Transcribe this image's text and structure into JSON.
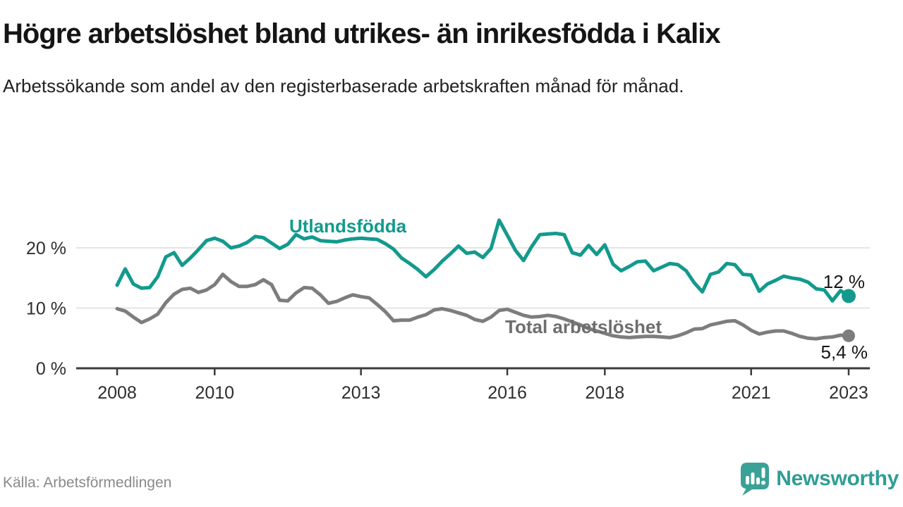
{
  "header": {
    "title": "Högre arbetslöshet bland utrikes- än inrikesfödda i Kalix",
    "subtitle": "Arbetssökande som andel av den registerbaserade arbetskraften månad för månad."
  },
  "chart_data": {
    "type": "line",
    "x_unit": "year (monthly data, plotted every 2nd month)",
    "x_start": 2008.0,
    "x_step_years": 0.1666667,
    "x_end": 2023.0,
    "ylim": [
      0,
      26
    ],
    "grid": "horizontal",
    "legend_position": "inline-labels",
    "yticks": [
      {
        "value": 0,
        "label": "0 %"
      },
      {
        "value": 10,
        "label": "10 %"
      },
      {
        "value": 20,
        "label": "20 %"
      }
    ],
    "xticks": [
      {
        "value": 2008,
        "label": "2008"
      },
      {
        "value": 2010,
        "label": "2010"
      },
      {
        "value": 2013,
        "label": "2013"
      },
      {
        "value": 2016,
        "label": "2016"
      },
      {
        "value": 2018,
        "label": "2018"
      },
      {
        "value": 2021,
        "label": "2021"
      },
      {
        "value": 2023,
        "label": "2023"
      }
    ],
    "series": [
      {
        "id": "utlandsfodda",
        "name": "Utlandsfödda",
        "color": "#129a8d",
        "end_label": "12 %",
        "end_value": 12.0,
        "values": [
          13.8,
          16.5,
          14.0,
          13.3,
          13.4,
          15.2,
          18.5,
          19.2,
          17.1,
          18.3,
          19.7,
          21.2,
          21.6,
          21.1,
          20.0,
          20.3,
          20.9,
          21.9,
          21.7,
          20.8,
          19.9,
          20.6,
          22.2,
          21.5,
          21.8,
          21.2,
          21.1,
          21.0,
          21.3,
          21.5,
          21.6,
          21.5,
          21.4,
          20.7,
          19.8,
          18.3,
          17.4,
          16.4,
          15.2,
          16.4,
          17.8,
          19.0,
          20.3,
          19.1,
          19.3,
          18.4,
          19.9,
          24.6,
          22.1,
          19.6,
          17.9,
          20.2,
          22.2,
          22.3,
          22.4,
          22.2,
          19.2,
          18.8,
          20.4,
          18.9,
          20.5,
          17.3,
          16.2,
          16.9,
          17.7,
          17.8,
          16.2,
          16.8,
          17.4,
          17.2,
          16.2,
          14.2,
          12.7,
          15.6,
          16.0,
          17.4,
          17.2,
          15.6,
          15.5,
          12.8,
          14.0,
          14.6,
          15.3,
          15.0,
          14.8,
          14.3,
          13.2,
          13.0,
          11.2,
          12.9,
          12.0
        ]
      },
      {
        "id": "total-arbetsloshet",
        "name": "Total arbetslöshet",
        "color": "#7d7d7d",
        "end_label": "5,4 %",
        "end_value": 5.4,
        "values": [
          9.9,
          9.5,
          8.5,
          7.6,
          8.2,
          9.0,
          10.9,
          12.3,
          13.1,
          13.3,
          12.6,
          13.0,
          13.9,
          15.6,
          14.4,
          13.6,
          13.6,
          13.9,
          14.7,
          13.9,
          11.3,
          11.2,
          12.5,
          13.4,
          13.3,
          12.2,
          10.8,
          11.1,
          11.7,
          12.2,
          11.9,
          11.7,
          10.6,
          9.4,
          7.9,
          8.0,
          8.0,
          8.5,
          8.9,
          9.7,
          9.9,
          9.6,
          9.2,
          8.8,
          8.1,
          7.8,
          8.5,
          9.6,
          9.8,
          9.3,
          8.8,
          8.5,
          8.6,
          8.8,
          8.6,
          8.2,
          7.7,
          7.2,
          6.6,
          6.2,
          5.8,
          5.4,
          5.2,
          5.1,
          5.2,
          5.3,
          5.3,
          5.2,
          5.1,
          5.4,
          5.9,
          6.5,
          6.6,
          7.2,
          7.5,
          7.8,
          7.9,
          7.2,
          6.3,
          5.7,
          6.0,
          6.2,
          6.2,
          5.8,
          5.3,
          5.0,
          4.9,
          5.1,
          5.2,
          5.5,
          5.4
        ]
      }
    ]
  },
  "footer": {
    "source": "Källa: Arbetsförmedlingen",
    "brand": "Newsworthy",
    "logo_icon": "speech-bubble-bar-chart-exclamation"
  },
  "colors": {
    "accent_teal": "#129a8d",
    "line_gray": "#7d7d7d",
    "series_label_gray": "#6e6e6e",
    "axis": "#3b3b3b",
    "grid": "#dcdcdc",
    "axis_text": "#2e2e2e",
    "title": "#151515",
    "subtitle": "#222222",
    "source_text": "#8a8a8a",
    "logo_teal": "#3aa197",
    "brand_text_teal": "#2f9e95"
  }
}
